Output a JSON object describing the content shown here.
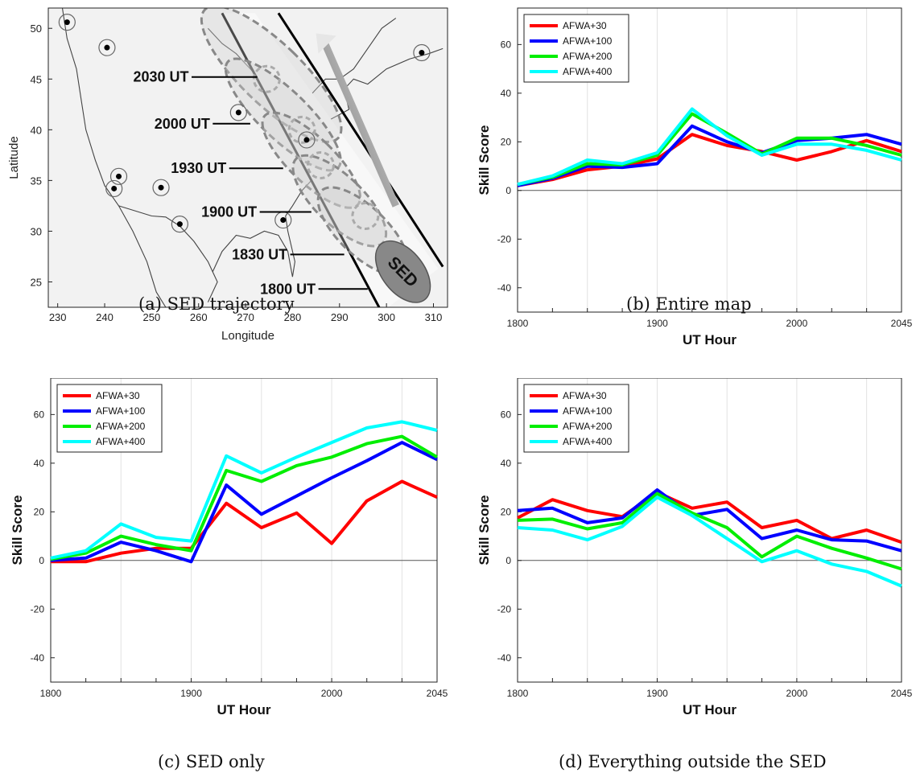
{
  "captions": {
    "a": "(a) SED trajectory",
    "b": "(b) Entire map",
    "c": "(c) SED only",
    "d": "(d) Everything outside the SED"
  },
  "colors": {
    "AFWA+30": "#ff0000",
    "AFWA+100": "#0000ff",
    "AFWA+200": "#00ee00",
    "AFWA+400": "#00ffff"
  },
  "chart_data": [
    {
      "type": "map",
      "id": "a",
      "xlabel": "Longitude",
      "ylabel": "Latitude",
      "xlim": [
        228,
        313
      ],
      "ylim": [
        22.5,
        52
      ],
      "x_ticks": [
        230,
        240,
        250,
        260,
        270,
        280,
        290,
        300,
        310
      ],
      "y_ticks": [
        25,
        30,
        35,
        40,
        45,
        50
      ],
      "stations": [
        {
          "lon": 232,
          "lat": 50.6
        },
        {
          "lon": 240.5,
          "lat": 48.1
        },
        {
          "lon": 307.5,
          "lat": 47.6
        },
        {
          "lon": 268.5,
          "lat": 41.7
        },
        {
          "lon": 283,
          "lat": 39
        },
        {
          "lon": 243,
          "lat": 35.4
        },
        {
          "lon": 242,
          "lat": 34.2
        },
        {
          "lon": 252,
          "lat": 34.3
        },
        {
          "lon": 256,
          "lat": 30.7
        },
        {
          "lon": 278,
          "lat": 31.1
        }
      ],
      "time_labels": [
        {
          "text": "2030 UT",
          "lon": 252,
          "lat": 45.2
        },
        {
          "text": "2000 UT",
          "lon": 256.5,
          "lat": 40.6
        },
        {
          "text": "1930 UT",
          "lon": 260,
          "lat": 36.2
        },
        {
          "text": "1900 UT",
          "lon": 266.5,
          "lat": 31.9
        },
        {
          "text": "1830 UT",
          "lon": 273,
          "lat": 27.7
        },
        {
          "text": "1800 UT",
          "lon": 279,
          "lat": 24.3
        }
      ],
      "sed_label": "SED"
    },
    {
      "type": "line",
      "id": "b",
      "xlabel": "UT Hour",
      "ylabel": "Skill Score",
      "ylim": [
        -50,
        75
      ],
      "y_ticks": [
        -40,
        -20,
        0,
        20,
        40,
        60
      ],
      "x_tick_labels": [
        "1800",
        "1900",
        "2000",
        "2045"
      ],
      "legend_position": "top-left",
      "x": [
        1800,
        1815,
        1830,
        1845,
        1900,
        1915,
        1930,
        1945,
        2000,
        2015,
        2030,
        2045
      ],
      "series": [
        {
          "name": "AFWA+30",
          "values": [
            2,
            4.5,
            8.5,
            10,
            13,
            23,
            18.5,
            16,
            12.5,
            16,
            20.5,
            16
          ]
        },
        {
          "name": "AFWA+100",
          "values": [
            2,
            5,
            10,
            9.5,
            11,
            26.5,
            20,
            15.5,
            20.5,
            21.5,
            23,
            19
          ]
        },
        {
          "name": "AFWA+200",
          "values": [
            2.5,
            5.5,
            11,
            10.5,
            14.5,
            31.5,
            23.5,
            15,
            21.5,
            21.5,
            18.5,
            14.5
          ]
        },
        {
          "name": "AFWA+400",
          "values": [
            2.5,
            6,
            12.5,
            11,
            15.5,
            33.5,
            22.5,
            14.5,
            19,
            19,
            16.5,
            12.5
          ]
        }
      ]
    },
    {
      "type": "line",
      "id": "c",
      "xlabel": "UT Hour",
      "ylabel": "Skill Score",
      "ylim": [
        -50,
        75
      ],
      "y_ticks": [
        -40,
        -20,
        0,
        20,
        40,
        60
      ],
      "x_tick_labels": [
        "1800",
        "1900",
        "2000",
        "2045"
      ],
      "legend_position": "top-left",
      "x": [
        1800,
        1815,
        1830,
        1845,
        1900,
        1915,
        1930,
        1945,
        2000,
        2015,
        2030,
        2045
      ],
      "series": [
        {
          "name": "AFWA+30",
          "values": [
            -0.5,
            -0.5,
            3,
            5,
            5,
            23.5,
            13.5,
            19.5,
            7,
            24.5,
            32.5,
            26
          ]
        },
        {
          "name": "AFWA+100",
          "values": [
            0,
            1,
            7.5,
            4,
            -0.5,
            31,
            19,
            26.5,
            34,
            41,
            48.5,
            41.5
          ]
        },
        {
          "name": "AFWA+200",
          "values": [
            0.5,
            3,
            10,
            6.5,
            4,
            37,
            32.5,
            39,
            42.5,
            48,
            51,
            42.5
          ]
        },
        {
          "name": "AFWA+400",
          "values": [
            1,
            4,
            15,
            9.5,
            8,
            43,
            36,
            42.5,
            48.5,
            54.5,
            57,
            53.5
          ]
        }
      ]
    },
    {
      "type": "line",
      "id": "d",
      "xlabel": "UT Hour",
      "ylabel": "Skill Score",
      "ylim": [
        -50,
        75
      ],
      "y_ticks": [
        -40,
        -20,
        0,
        20,
        40,
        60
      ],
      "x_tick_labels": [
        "1800",
        "1900",
        "2000",
        "2045"
      ],
      "legend_position": "top-left",
      "x": [
        1800,
        1815,
        1830,
        1845,
        1900,
        1915,
        1930,
        1945,
        2000,
        2015,
        2030,
        2045
      ],
      "series": [
        {
          "name": "AFWA+30",
          "values": [
            17.5,
            25,
            20.5,
            18,
            28,
            21.5,
            24,
            13.5,
            16.5,
            9,
            12.5,
            7.5
          ]
        },
        {
          "name": "AFWA+100",
          "values": [
            20.5,
            21.5,
            15.5,
            17.5,
            29,
            18.5,
            21,
            9,
            12.5,
            8.5,
            8,
            4
          ]
        },
        {
          "name": "AFWA+200",
          "values": [
            16.5,
            17,
            13,
            15.5,
            27.5,
            19.5,
            13.5,
            1.5,
            10,
            5,
            1,
            -3.5
          ]
        },
        {
          "name": "AFWA+400",
          "values": [
            13.5,
            12.5,
            8.5,
            14,
            26,
            18.5,
            9,
            -0.5,
            4,
            -1.5,
            -4.5,
            -10.5
          ]
        }
      ]
    }
  ]
}
